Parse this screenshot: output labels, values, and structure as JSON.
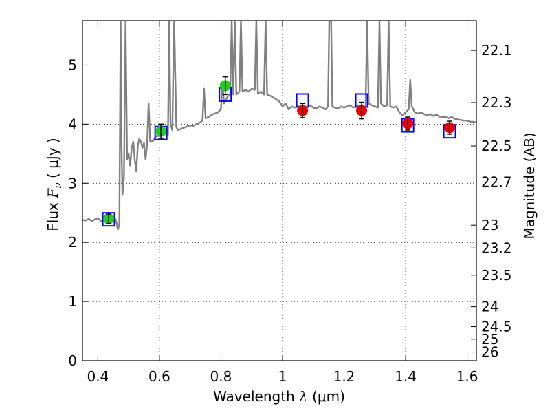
{
  "chart_data": {
    "type": "scatter",
    "xlabel": {
      "pre": "Wavelength  ",
      "sym": "λ",
      "post": " (μm)"
    },
    "ylabel": {
      "pre": "Flux  ",
      "sym": "F",
      "sub": "ν",
      "post": "  ( μJy )"
    },
    "y2label": "Magnitude (AB)",
    "xlim": [
      0.35,
      1.63
    ],
    "ylim": [
      0,
      5.75
    ],
    "grid": true,
    "x_ticks": [
      0.4,
      0.6,
      0.8,
      1.0,
      1.2,
      1.4,
      1.6
    ],
    "x_tick_labels": [
      "0.4",
      "0.6",
      "0.8",
      "1",
      "1.2",
      "1.4",
      "1.6"
    ],
    "y_ticks": [
      0,
      1,
      2,
      3,
      4,
      5
    ],
    "y_tick_labels": [
      "0",
      "1",
      "2",
      "3",
      "4",
      "5"
    ],
    "mag_ticks": [
      22.1,
      22.3,
      22.5,
      22.7,
      23,
      23.2,
      23.5,
      24,
      24.5,
      25,
      26
    ],
    "mag_tick_labels": [
      "22.1",
      "22.3",
      "22.5",
      "22.7",
      "23",
      "23.2",
      "23.5",
      "24",
      "24.5",
      "25",
      "26"
    ],
    "colors": {
      "spectrum": "#808080",
      "model_box": "#0000ff",
      "green": "#22cc22",
      "red": "#ee0000",
      "errorbar": "#000000"
    },
    "series": [
      {
        "marker": "green-circle",
        "points": [
          {
            "x": 0.435,
            "y": 2.4,
            "err": 0.08
          },
          {
            "x": 0.605,
            "y": 3.88,
            "err": 0.12
          },
          {
            "x": 0.814,
            "y": 4.65,
            "err": 0.15
          }
        ]
      },
      {
        "marker": "red-circle",
        "points": [
          {
            "x": 1.065,
            "y": 4.23,
            "err": 0.12
          },
          {
            "x": 1.257,
            "y": 4.23,
            "err": 0.14
          },
          {
            "x": 1.407,
            "y": 4.01,
            "err": 0.11
          },
          {
            "x": 1.543,
            "y": 3.94,
            "err": 0.11
          }
        ]
      }
    ],
    "model_points": [
      {
        "x": 0.435,
        "y": 2.39
      },
      {
        "x": 0.605,
        "y": 3.85
      },
      {
        "x": 0.814,
        "y": 4.5
      },
      {
        "x": 1.065,
        "y": 4.4
      },
      {
        "x": 1.257,
        "y": 4.4
      },
      {
        "x": 1.407,
        "y": 3.98
      },
      {
        "x": 1.543,
        "y": 3.88
      }
    ],
    "spectrum": [
      [
        0.35,
        2.38
      ],
      [
        0.36,
        2.37
      ],
      [
        0.37,
        2.4
      ],
      [
        0.38,
        2.36
      ],
      [
        0.39,
        2.39
      ],
      [
        0.4,
        2.41
      ],
      [
        0.41,
        2.36
      ],
      [
        0.42,
        2.41
      ],
      [
        0.43,
        2.38
      ],
      [
        0.44,
        2.4
      ],
      [
        0.45,
        2.36
      ],
      [
        0.455,
        2.42
      ],
      [
        0.46,
        2.35
      ],
      [
        0.465,
        2.22
      ],
      [
        0.47,
        2.3
      ],
      [
        0.474,
        5.75
      ],
      [
        0.477,
        3.6
      ],
      [
        0.48,
        2.8
      ],
      [
        0.485,
        3.1
      ],
      [
        0.49,
        5.75
      ],
      [
        0.495,
        3.4
      ],
      [
        0.5,
        3.5
      ],
      [
        0.505,
        3.3
      ],
      [
        0.51,
        3.6
      ],
      [
        0.515,
        3.7
      ],
      [
        0.52,
        3.4
      ],
      [
        0.525,
        3.2
      ],
      [
        0.53,
        3.65
      ],
      [
        0.535,
        3.75
      ],
      [
        0.54,
        3.7
      ],
      [
        0.545,
        3.6
      ],
      [
        0.55,
        3.68
      ],
      [
        0.555,
        3.4
      ],
      [
        0.56,
        3.65
      ],
      [
        0.565,
        4.35
      ],
      [
        0.57,
        3.7
      ],
      [
        0.58,
        3.72
      ],
      [
        0.59,
        3.8
      ],
      [
        0.6,
        3.8
      ],
      [
        0.61,
        3.83
      ],
      [
        0.62,
        3.85
      ],
      [
        0.628,
        3.82
      ],
      [
        0.632,
        5.75
      ],
      [
        0.636,
        4.0
      ],
      [
        0.642,
        3.9
      ],
      [
        0.648,
        5.75
      ],
      [
        0.655,
        3.95
      ],
      [
        0.66,
        3.9
      ],
      [
        0.67,
        3.92
      ],
      [
        0.68,
        3.94
      ],
      [
        0.69,
        3.96
      ],
      [
        0.7,
        3.98
      ],
      [
        0.71,
        3.97
      ],
      [
        0.72,
        4.0
      ],
      [
        0.73,
        4.02
      ],
      [
        0.74,
        4.06
      ],
      [
        0.745,
        4.6
      ],
      [
        0.75,
        4.1
      ],
      [
        0.76,
        4.12
      ],
      [
        0.77,
        4.16
      ],
      [
        0.78,
        4.18
      ],
      [
        0.79,
        4.2
      ],
      [
        0.8,
        4.25
      ],
      [
        0.805,
        4.7
      ],
      [
        0.81,
        4.35
      ],
      [
        0.82,
        4.45
      ],
      [
        0.83,
        4.52
      ],
      [
        0.835,
        5.75
      ],
      [
        0.84,
        4.5
      ],
      [
        0.845,
        5.75
      ],
      [
        0.85,
        4.5
      ],
      [
        0.86,
        4.55
      ],
      [
        0.865,
        5.75
      ],
      [
        0.87,
        4.55
      ],
      [
        0.88,
        4.58
      ],
      [
        0.89,
        4.55
      ],
      [
        0.9,
        4.6
      ],
      [
        0.91,
        4.58
      ],
      [
        0.915,
        5.75
      ],
      [
        0.92,
        4.52
      ],
      [
        0.93,
        4.55
      ],
      [
        0.94,
        4.5
      ],
      [
        0.945,
        5.75
      ],
      [
        0.95,
        4.5
      ],
      [
        0.96,
        4.48
      ],
      [
        0.97,
        4.45
      ],
      [
        0.98,
        4.42
      ],
      [
        0.99,
        4.38
      ],
      [
        1.0,
        4.3
      ],
      [
        1.01,
        4.35
      ],
      [
        1.02,
        4.25
      ],
      [
        1.03,
        4.3
      ],
      [
        1.04,
        4.28
      ],
      [
        1.05,
        4.3
      ],
      [
        1.06,
        4.3
      ],
      [
        1.07,
        4.27
      ],
      [
        1.08,
        4.29
      ],
      [
        1.09,
        4.32
      ],
      [
        1.1,
        4.28
      ],
      [
        1.11,
        4.26
      ],
      [
        1.12,
        4.3
      ],
      [
        1.13,
        4.28
      ],
      [
        1.14,
        4.25
      ],
      [
        1.148,
        4.3
      ],
      [
        1.152,
        5.75
      ],
      [
        1.158,
        5.75
      ],
      [
        1.162,
        4.3
      ],
      [
        1.17,
        4.28
      ],
      [
        1.18,
        4.26
      ],
      [
        1.19,
        4.3
      ],
      [
        1.2,
        4.28
      ],
      [
        1.21,
        4.3
      ],
      [
        1.22,
        4.32
      ],
      [
        1.23,
        4.28
      ],
      [
        1.24,
        4.3
      ],
      [
        1.25,
        4.32
      ],
      [
        1.26,
        4.3
      ],
      [
        1.27,
        4.28
      ],
      [
        1.275,
        5.75
      ],
      [
        1.28,
        4.35
      ],
      [
        1.29,
        4.32
      ],
      [
        1.3,
        4.3
      ],
      [
        1.31,
        4.28
      ],
      [
        1.315,
        5.75
      ],
      [
        1.32,
        4.35
      ],
      [
        1.33,
        4.3
      ],
      [
        1.34,
        4.32
      ],
      [
        1.345,
        5.75
      ],
      [
        1.35,
        4.3
      ],
      [
        1.36,
        4.28
      ],
      [
        1.37,
        4.3
      ],
      [
        1.38,
        4.2
      ],
      [
        1.39,
        4.15
      ],
      [
        1.4,
        4.2
      ],
      [
        1.41,
        4.25
      ],
      [
        1.415,
        4.75
      ],
      [
        1.42,
        4.3
      ],
      [
        1.43,
        4.2
      ],
      [
        1.44,
        4.18
      ],
      [
        1.45,
        4.2
      ],
      [
        1.46,
        4.17
      ],
      [
        1.47,
        4.15
      ],
      [
        1.48,
        4.17
      ],
      [
        1.49,
        4.14
      ],
      [
        1.5,
        4.16
      ],
      [
        1.51,
        4.13
      ],
      [
        1.52,
        4.12
      ],
      [
        1.53,
        4.12
      ],
      [
        1.54,
        4.1
      ],
      [
        1.55,
        4.12
      ],
      [
        1.56,
        4.09
      ],
      [
        1.57,
        4.08
      ],
      [
        1.58,
        4.07
      ],
      [
        1.59,
        4.06
      ],
      [
        1.6,
        4.06
      ],
      [
        1.61,
        4.04
      ],
      [
        1.62,
        4.04
      ],
      [
        1.63,
        4.03
      ]
    ]
  }
}
